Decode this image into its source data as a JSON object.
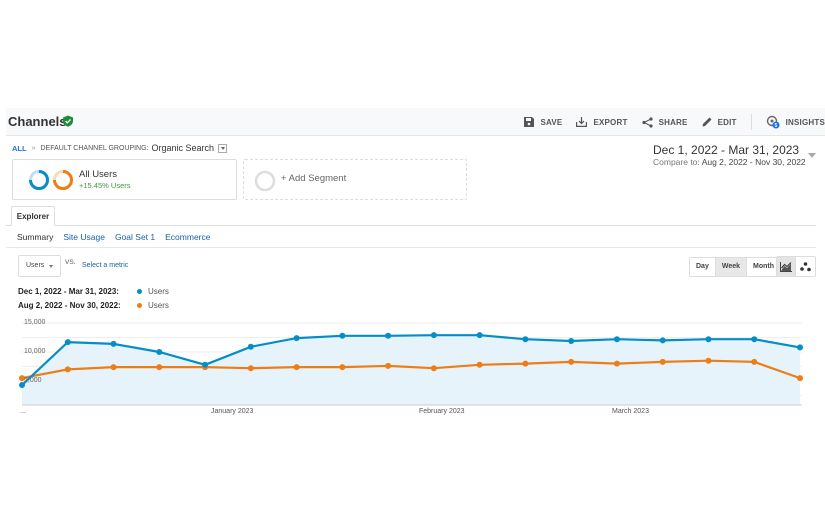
{
  "header": {
    "title": "Channels",
    "verified_icon": "check-shield-icon",
    "actions": [
      {
        "label": "SAVE",
        "icon": "save-icon"
      },
      {
        "label": "EXPORT",
        "icon": "export-icon"
      },
      {
        "label": "SHARE",
        "icon": "share-icon"
      },
      {
        "label": "EDIT",
        "icon": "pencil-icon"
      },
      {
        "label": "INSIGHTS",
        "icon": "insights-icon",
        "badge": "5"
      }
    ]
  },
  "breadcrumb": {
    "all": "ALL",
    "separator": "»",
    "dimension": "DEFAULT CHANNEL GROUPING:",
    "value": "Organic Search"
  },
  "date_range": {
    "main": "Dec 1, 2022 - Mar 31, 2023",
    "compare_label": "Compare to:",
    "compare_range": "Aug 2, 2022 - Nov 30, 2022"
  },
  "segments": {
    "active": {
      "name": "All Users",
      "delta": "+15.45% Users"
    },
    "add": "+ Add Segment"
  },
  "tabs": {
    "main": "Explorer",
    "sub": [
      "Summary",
      "Site Usage",
      "Goal Set 1",
      "Ecommerce"
    ]
  },
  "controls": {
    "metric": "Users",
    "vs": "VS.",
    "select_metric": "Select a metric",
    "granularity": [
      "Day",
      "Week",
      "Month"
    ],
    "granularity_selected": "Week"
  },
  "legend": [
    {
      "range": "Dec 1, 2022 - Mar 31, 2023:",
      "metric": "Users",
      "color": "#058dc7"
    },
    {
      "range": "Aug 2, 2022 - Nov 30, 2022:",
      "metric": "Users",
      "color": "#ed7e17"
    }
  ],
  "colors": {
    "primary": "#058dc7",
    "compare": "#ed7e17",
    "area_fill": "#e6f3fa",
    "link": "#1a5fa8"
  },
  "chart_data": {
    "type": "line",
    "title": "",
    "xlabel": "",
    "ylabel": "Users",
    "ylim": [
      0,
      15000
    ],
    "y_ticks": [
      "15,000",
      "10,000",
      "5,000"
    ],
    "x_tick_labels": [
      "...",
      "January 2023",
      "February 2023",
      "March 2023"
    ],
    "grid": true,
    "legend_position": "top-left",
    "series": [
      {
        "name": "Dec 1, 2022 - Mar 31, 2023: Users",
        "color": "#058dc7",
        "area": true,
        "values": [
          4300,
          11700,
          11400,
          10000,
          7800,
          10900,
          12400,
          12800,
          12800,
          12900,
          12900,
          12200,
          11900,
          12200,
          12000,
          12200,
          12200,
          10800
        ]
      },
      {
        "name": "Aug 2, 2022 - Nov 30, 2022: Users",
        "color": "#ed7e17",
        "area": false,
        "values": [
          5500,
          7000,
          7400,
          7400,
          7400,
          7200,
          7400,
          7400,
          7600,
          7200,
          7800,
          8000,
          8300,
          8000,
          8300,
          8500,
          8300,
          5500
        ]
      }
    ]
  }
}
